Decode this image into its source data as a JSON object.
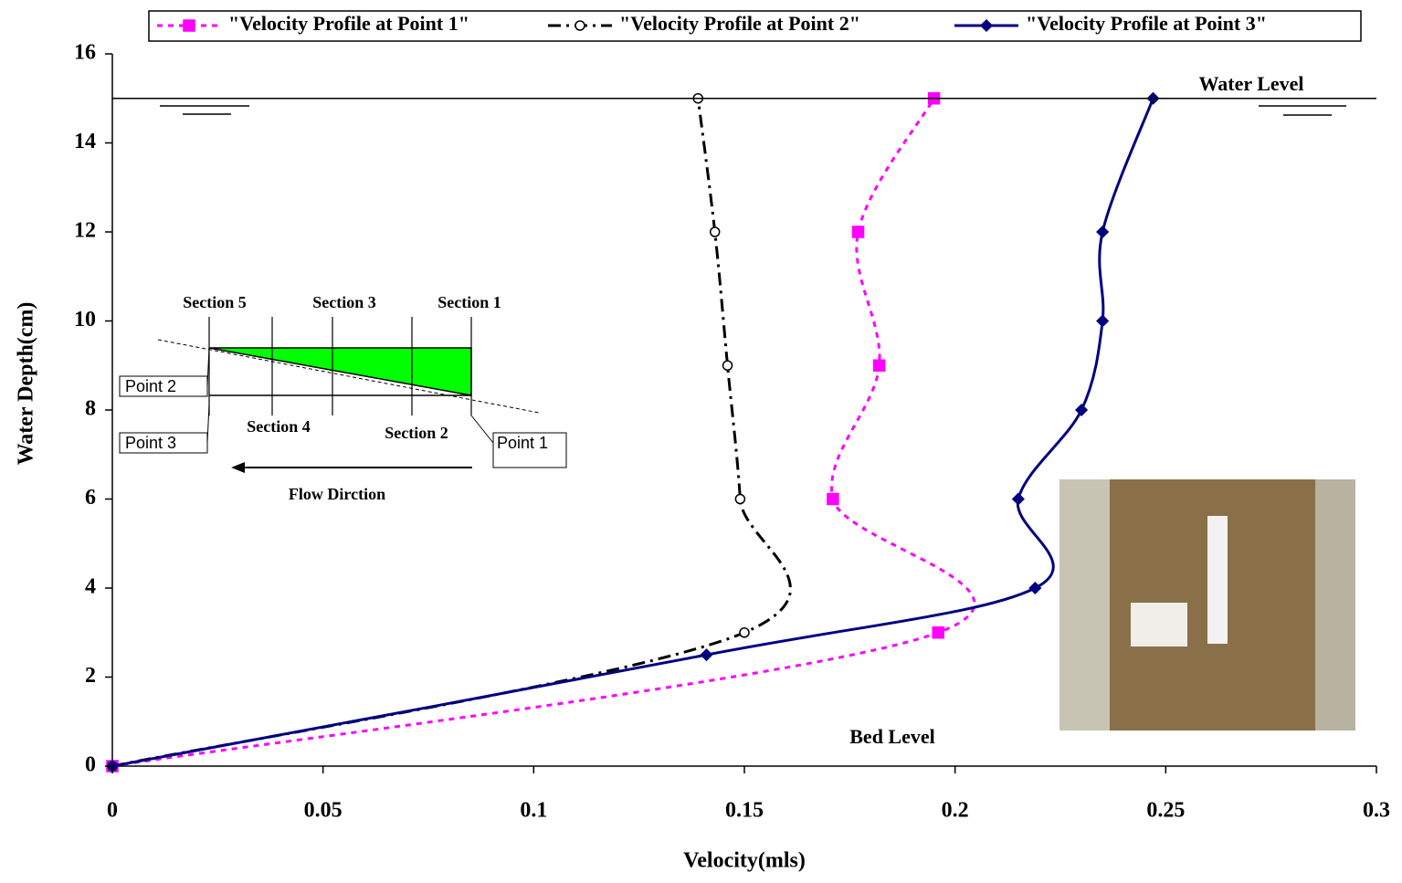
{
  "chart_data": {
    "type": "line",
    "x_label": "Velocity(mls)",
    "y_label": "Water Depth(cm)",
    "xlim": [
      0,
      0.3
    ],
    "xticks": [
      0,
      0.05,
      0.1,
      0.15,
      0.2,
      0.25,
      0.3
    ],
    "ylim": [
      0,
      16
    ],
    "yticks": [
      0,
      2,
      4,
      6,
      8,
      10,
      12,
      14,
      16
    ],
    "grid": false,
    "smooth": true,
    "reference_line": 15,
    "annotations": [
      "Water Level",
      "Bed Level"
    ],
    "series": [
      {
        "name": "\"Velocity Profile at Point 1\"",
        "color": "#ff00ff",
        "dash": "6,6",
        "marker": "square",
        "x": [
          0,
          0.196,
          0.171,
          0.182,
          0.177,
          0.195
        ],
        "values": [
          0,
          3,
          6,
          9,
          12,
          15
        ]
      },
      {
        "name": "\"Velocity Profile at Point 2\"",
        "color": "#000000",
        "dash": "14,6,3,6",
        "marker": "circle",
        "x": [
          0,
          0.15,
          0.149,
          0.146,
          0.143,
          0.139
        ],
        "values": [
          0,
          3,
          6,
          9,
          12,
          15
        ]
      },
      {
        "name": "\"Velocity Profile at Point 3\"",
        "color": "#000080",
        "dash": "none",
        "marker": "diamond",
        "x": [
          0,
          0.141,
          0.219,
          0.215,
          0.23,
          0.235,
          0.235,
          0.247
        ],
        "values": [
          0,
          2.5,
          4,
          6,
          8,
          10,
          12,
          15
        ]
      }
    ],
    "inset": {
      "sections": [
        "Section 5",
        "Section 3",
        "Section 1",
        "Section 4",
        "Section 2"
      ],
      "points": [
        "Point 2",
        "Point 3",
        "Point 1"
      ],
      "flow": "Flow Dirction"
    }
  }
}
